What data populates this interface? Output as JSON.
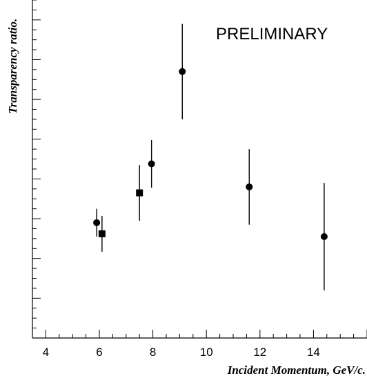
{
  "chart_data": {
    "type": "scatter",
    "title": "",
    "xlabel": "Incident Momentum, GeV/c.",
    "ylabel": "Transparency ratio.",
    "annotation": "PRELIMINARY",
    "xlim": [
      3.5,
      16.0
    ],
    "ylim": [
      0,
      8.5
    ],
    "x_ticks": [
      4,
      6,
      8,
      10,
      12,
      14
    ],
    "y_ticks": [
      1,
      2,
      3,
      4,
      5,
      6,
      7,
      8
    ],
    "grid": false,
    "legend": "none",
    "series": [
      {
        "marker": "circle",
        "points": [
          {
            "x": 5.9,
            "y": 2.9,
            "err_lo": 0.35,
            "err_hi": 0.35
          },
          {
            "x": 7.95,
            "y": 4.38,
            "err_lo": 0.6,
            "err_hi": 0.6
          },
          {
            "x": 9.1,
            "y": 6.7,
            "err_lo": 1.2,
            "err_hi": 1.2
          },
          {
            "x": 11.6,
            "y": 3.8,
            "err_lo": 0.95,
            "err_hi": 0.95
          },
          {
            "x": 14.4,
            "y": 2.55,
            "err_lo": 1.35,
            "err_hi": 1.35
          }
        ]
      },
      {
        "marker": "square",
        "points": [
          {
            "x": 6.1,
            "y": 2.62,
            "err_lo": 0.45,
            "err_hi": 0.45
          },
          {
            "x": 7.5,
            "y": 3.65,
            "err_lo": 0.7,
            "err_hi": 0.7
          }
        ]
      }
    ]
  }
}
